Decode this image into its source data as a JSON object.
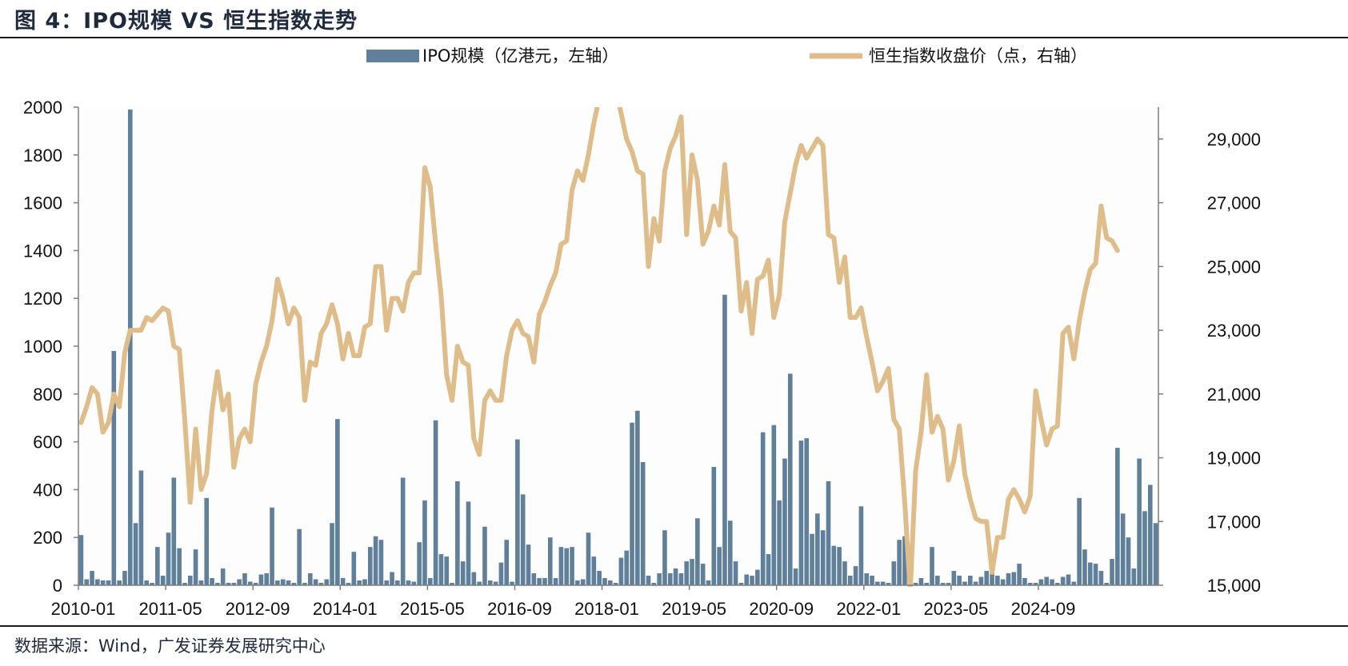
{
  "figure": {
    "title": "图 4：IPO规模 VS 恒生指数走势",
    "source": "数据来源：Wind，广发证券发展研究中心"
  },
  "chart_data": {
    "type": "bar+line",
    "title": "",
    "grid": false,
    "legend_position": "top-center",
    "x_tick_labels": [
      "2010-01",
      "2011-05",
      "2012-09",
      "2014-01",
      "2015-05",
      "2016-09",
      "2018-01",
      "2019-05",
      "2020-09",
      "2022-01",
      "2023-05",
      "2024-09"
    ],
    "y_left": {
      "ticks": [
        0,
        200,
        400,
        600,
        800,
        1000,
        1200,
        1400,
        1600,
        1800,
        2000
      ],
      "tick_labels": [
        "0",
        "200",
        "400",
        "600",
        "800",
        "1000",
        "1200",
        "1400",
        "1600",
        "1800",
        "2000"
      ],
      "lim": [
        0,
        2000
      ]
    },
    "y_right": {
      "ticks": [
        15000,
        17000,
        19000,
        21000,
        23000,
        25000,
        27000,
        29000
      ],
      "tick_labels": [
        "15,000",
        "17,000",
        "19,000",
        "21,000",
        "23,000",
        "25,000",
        "27,000",
        "29,000"
      ],
      "lim": [
        15000,
        30000
      ]
    },
    "series": [
      {
        "name": "IPO规模（亿港元，左轴）",
        "type": "bar",
        "axis": "left",
        "color": "#5f7f9b",
        "values": [
          210,
          25,
          60,
          25,
          20,
          20,
          980,
          20,
          60,
          1990,
          260,
          480,
          20,
          10,
          160,
          40,
          220,
          450,
          155,
          10,
          40,
          150,
          20,
          365,
          30,
          10,
          70,
          10,
          10,
          25,
          50,
          15,
          10,
          45,
          50,
          325,
          20,
          25,
          20,
          10,
          235,
          10,
          50,
          25,
          10,
          25,
          260,
          695,
          30,
          10,
          140,
          20,
          25,
          160,
          205,
          190,
          20,
          55,
          20,
          450,
          20,
          15,
          180,
          355,
          30,
          690,
          130,
          120,
          10,
          435,
          100,
          350,
          55,
          15,
          245,
          20,
          15,
          95,
          190,
          15,
          610,
          380,
          170,
          50,
          30,
          30,
          200,
          30,
          160,
          155,
          160,
          20,
          25,
          220,
          120,
          60,
          30,
          20,
          10,
          115,
          145,
          680,
          730,
          515,
          40,
          10,
          50,
          230,
          50,
          70,
          50,
          100,
          110,
          280,
          90,
          20,
          495,
          160,
          1215,
          270,
          100,
          10,
          45,
          40,
          65,
          640,
          130,
          670,
          355,
          530,
          885,
          70,
          605,
          615,
          215,
          300,
          230,
          435,
          165,
          160,
          100,
          40,
          80,
          330,
          50,
          40,
          15,
          15,
          10,
          100,
          190,
          205,
          140,
          10,
          30,
          10,
          160,
          40,
          10,
          10,
          60,
          40,
          15,
          40,
          15,
          35,
          60,
          90,
          40,
          25,
          50,
          55,
          90,
          30,
          10,
          10,
          25,
          35,
          25,
          10,
          35,
          45,
          15,
          365,
          150,
          95,
          90,
          60,
          10,
          110,
          575,
          300,
          200,
          70,
          530,
          310,
          420,
          260
        ]
      },
      {
        "name": "恒生指数收盘价（点，右轴）",
        "type": "line",
        "axis": "right",
        "color": "#dfbd8a",
        "values": [
          20100,
          20600,
          21200,
          21000,
          19800,
          20100,
          21000,
          20600,
          22300,
          23000,
          23000,
          23000,
          23400,
          23300,
          23500,
          23700,
          23600,
          22500,
          22400,
          20200,
          17600,
          19900,
          18000,
          18500,
          20500,
          21700,
          20500,
          21000,
          18700,
          19600,
          19900,
          19500,
          21300,
          22000,
          22500,
          23300,
          24600,
          24000,
          23200,
          23700,
          23400,
          20800,
          22000,
          21900,
          22900,
          23200,
          23800,
          23200,
          22100,
          22900,
          22200,
          22200,
          23100,
          23200,
          25000,
          25000,
          23000,
          24000,
          24000,
          23600,
          24500,
          24800,
          24800,
          28100,
          27500,
          25700,
          24100,
          21600,
          20800,
          22500,
          22000,
          21900,
          19600,
          19100,
          20800,
          21100,
          20800,
          20800,
          22200,
          23000,
          23300,
          22900,
          22800,
          22000,
          23500,
          23900,
          24400,
          24800,
          25700,
          25800,
          27400,
          28000,
          27700,
          28500,
          29500,
          30300,
          31000,
          30700,
          30600,
          29800,
          29000,
          28600,
          28000,
          27900,
          25000,
          26500,
          25800,
          28000,
          28700,
          29100,
          29700,
          26000,
          28500,
          27700,
          25700,
          26100,
          26900,
          26300,
          28200,
          26100,
          25900,
          23600,
          24500,
          22900,
          24600,
          24700,
          25200,
          23400,
          24100,
          26400,
          27300,
          28200,
          28800,
          28400,
          28700,
          29000,
          28800,
          26000,
          25900,
          24500,
          25300,
          23400,
          23400,
          23700,
          22800,
          22000,
          21100,
          21400,
          21800,
          20200,
          19900,
          17600,
          14800,
          18600,
          19800,
          21600,
          19800,
          20300,
          19900,
          18300,
          18900,
          20000,
          18500,
          17700,
          17100,
          17000,
          17000,
          15400,
          16500,
          16500,
          17700,
          18000,
          17700,
          17300,
          17800,
          21100,
          20200,
          19400,
          19900,
          20000,
          22900,
          23100,
          22100,
          23300,
          24200,
          24900,
          25100,
          26900,
          25900,
          25800,
          25500
        ]
      }
    ]
  }
}
